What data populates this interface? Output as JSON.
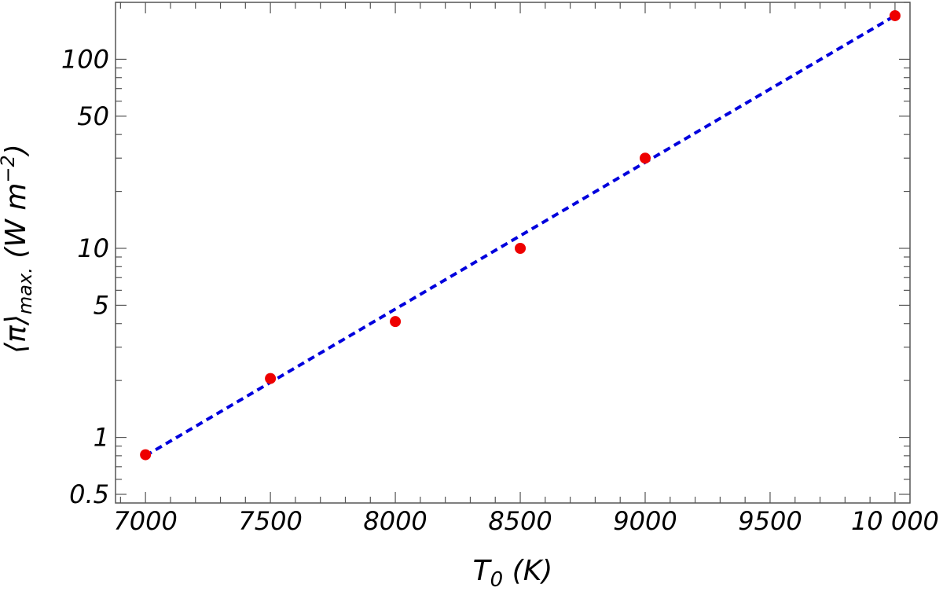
{
  "chart_data": {
    "type": "scatter",
    "title": "",
    "xlabel": "T0 (K)",
    "ylabel": "⟨π⟩max. (W m−2)",
    "x_label_parts": {
      "base": "T",
      "sub": "0",
      "rest": " (K)"
    },
    "y_label_parts": {
      "base": "⟨π⟩",
      "sub": "max.",
      "rest": " (W m",
      "sup": "−2",
      "close": ")"
    },
    "xlim": [
      6880,
      10060
    ],
    "ylim": [
      0.45,
      200
    ],
    "yscale": "log",
    "x_ticks": [
      7000,
      7500,
      8000,
      8500,
      9000,
      9500,
      10000
    ],
    "x_tick_labels": [
      "7000",
      "7500",
      "8000",
      "8500",
      "9000",
      "9500",
      "10 000"
    ],
    "y_ticks": [
      0.5,
      1,
      5,
      10,
      50,
      100
    ],
    "y_tick_labels": [
      "0.5",
      "1",
      "5",
      "10",
      "50",
      "100"
    ],
    "grid": false,
    "series": [
      {
        "kind": "points",
        "color": "#ee0000",
        "x": [
          7000,
          7500,
          8000,
          8500,
          9000,
          10000
        ],
        "y": [
          0.81,
          2.05,
          4.1,
          10.0,
          30.0,
          170.0
        ]
      },
      {
        "kind": "fit-line",
        "style": "dashed",
        "color": "#0000dd",
        "x": [
          7000,
          10000
        ],
        "y": [
          0.8,
          170.0
        ]
      }
    ]
  }
}
